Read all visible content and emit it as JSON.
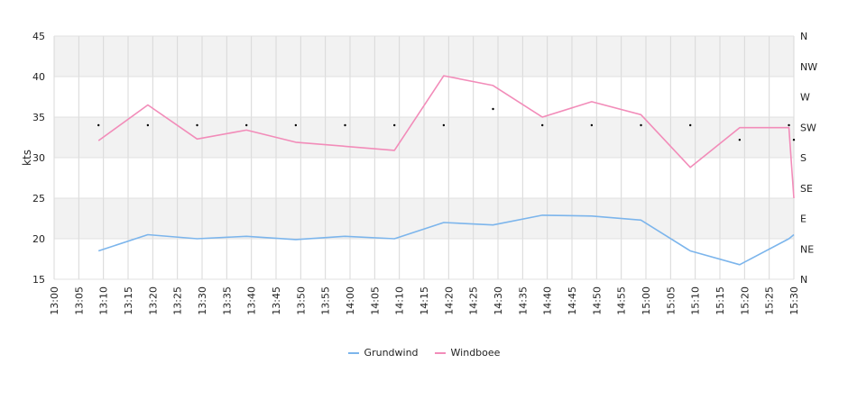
{
  "chart_data": {
    "type": "line",
    "ylabel": "kts",
    "ylim": [
      15,
      45
    ],
    "yticks": [
      15,
      20,
      25,
      30,
      35,
      40,
      45
    ],
    "x_labels": [
      "13:00",
      "13:05",
      "13:10",
      "13:15",
      "13:20",
      "13:25",
      "13:30",
      "13:35",
      "13:40",
      "13:45",
      "13:50",
      "13:55",
      "14:00",
      "14:05",
      "14:10",
      "14:15",
      "14:20",
      "14:25",
      "14:30",
      "14:35",
      "14:40",
      "14:45",
      "14:50",
      "14:55",
      "15:00",
      "15:05",
      "15:10",
      "15:15",
      "15:20",
      "15:25",
      "15:30"
    ],
    "x_minutes_range": [
      0,
      150
    ],
    "direction_axis": [
      "N",
      "NE",
      "E",
      "SE",
      "S",
      "SW",
      "W",
      "NW",
      "N"
    ],
    "series": [
      {
        "name": "Grundwind",
        "color": "#7cb5ec",
        "points": [
          {
            "t": 9,
            "v": 18.5
          },
          {
            "t": 19,
            "v": 20.5
          },
          {
            "t": 29,
            "v": 20.0
          },
          {
            "t": 39,
            "v": 20.3
          },
          {
            "t": 49,
            "v": 19.9
          },
          {
            "t": 59,
            "v": 20.3
          },
          {
            "t": 69,
            "v": 20.0
          },
          {
            "t": 79,
            "v": 22.0
          },
          {
            "t": 89,
            "v": 21.7
          },
          {
            "t": 99,
            "v": 22.9
          },
          {
            "t": 109,
            "v": 22.8
          },
          {
            "t": 119,
            "v": 22.3
          },
          {
            "t": 129,
            "v": 18.5
          },
          {
            "t": 139,
            "v": 16.8
          },
          {
            "t": 149,
            "v": 20.0
          },
          {
            "t": 150,
            "v": 20.5
          }
        ]
      },
      {
        "name": "Windboee",
        "color": "#f28cb9",
        "points": [
          {
            "t": 9,
            "v": 32.1
          },
          {
            "t": 19,
            "v": 36.5
          },
          {
            "t": 29,
            "v": 32.3
          },
          {
            "t": 39,
            "v": 33.4
          },
          {
            "t": 49,
            "v": 31.9
          },
          {
            "t": 59,
            "v": 31.4
          },
          {
            "t": 69,
            "v": 30.9
          },
          {
            "t": 79,
            "v": 40.1
          },
          {
            "t": 89,
            "v": 38.9
          },
          {
            "t": 99,
            "v": 35.0
          },
          {
            "t": 109,
            "v": 36.9
          },
          {
            "t": 119,
            "v": 35.3
          },
          {
            "t": 129,
            "v": 28.8
          },
          {
            "t": 139,
            "v": 33.7
          },
          {
            "t": 149,
            "v": 33.7
          },
          {
            "t": 150,
            "v": 25.0
          }
        ]
      }
    ],
    "direction_points": [
      {
        "t": 9,
        "dir": 34.0
      },
      {
        "t": 19,
        "dir": 34.0
      },
      {
        "t": 29,
        "dir": 34.0
      },
      {
        "t": 39,
        "dir": 34.0
      },
      {
        "t": 49,
        "dir": 34.0
      },
      {
        "t": 59,
        "dir": 34.0
      },
      {
        "t": 69,
        "dir": 34.0
      },
      {
        "t": 79,
        "dir": 34.0
      },
      {
        "t": 89,
        "dir": 36.0
      },
      {
        "t": 99,
        "dir": 34.0
      },
      {
        "t": 109,
        "dir": 34.0
      },
      {
        "t": 119,
        "dir": 34.0
      },
      {
        "t": 129,
        "dir": 34.0
      },
      {
        "t": 139,
        "dir": 32.2
      },
      {
        "t": 149,
        "dir": 34.0
      },
      {
        "t": 150,
        "dir": 32.2
      }
    ],
    "legend_position": "bottom",
    "grid": true
  }
}
